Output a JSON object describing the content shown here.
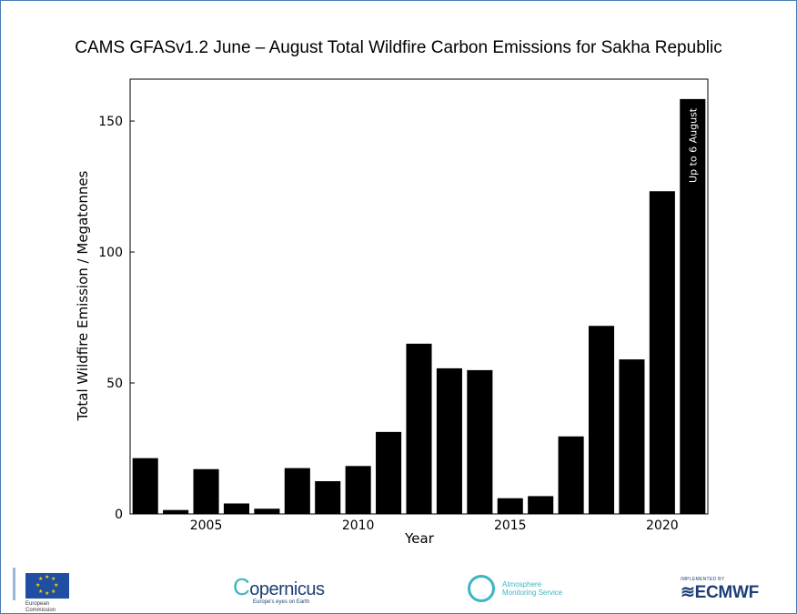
{
  "chart_data": {
    "type": "bar",
    "title": "CAMS GFASv1.2 June – August Total Wildfire Carbon Emissions  for Sakha Republic",
    "xlabel": "Year",
    "ylabel": "Total Wildfire Emission / Megatonnes",
    "x": [
      2003,
      2004,
      2005,
      2006,
      2007,
      2008,
      2009,
      2010,
      2011,
      2012,
      2013,
      2014,
      2015,
      2016,
      2017,
      2018,
      2019,
      2020,
      2021
    ],
    "values": [
      21.3,
      1.5,
      17.1,
      4.0,
      2.0,
      17.5,
      12.5,
      18.3,
      31.3,
      65.0,
      55.6,
      54.9,
      6.0,
      6.8,
      29.6,
      71.8,
      59.0,
      123.2,
      158.4
    ],
    "xticks": [
      2005,
      2010,
      2015,
      2020
    ],
    "yticks": [
      0,
      50,
      100,
      150
    ],
    "xlim": [
      2002.5,
      2021.5
    ],
    "ylim": [
      0,
      166
    ],
    "grid": false,
    "annotation": {
      "text": "Up to 6 August",
      "x": 2021
    }
  },
  "colors": {
    "bar": "#000000",
    "frame": "#4a7ab5",
    "background": "#ffffff"
  },
  "logos": {
    "ec_text_1": "European",
    "ec_text_2": "Commission",
    "copernicus_name": "opernicus",
    "copernicus_tagline": "Europe's eyes on Earth",
    "ams_text_1": "Atmosphere",
    "ams_text_2": "Monitoring Service",
    "ecmwf_implemented": "IMPLEMENTED BY",
    "ecmwf_name": "ECMWF"
  }
}
